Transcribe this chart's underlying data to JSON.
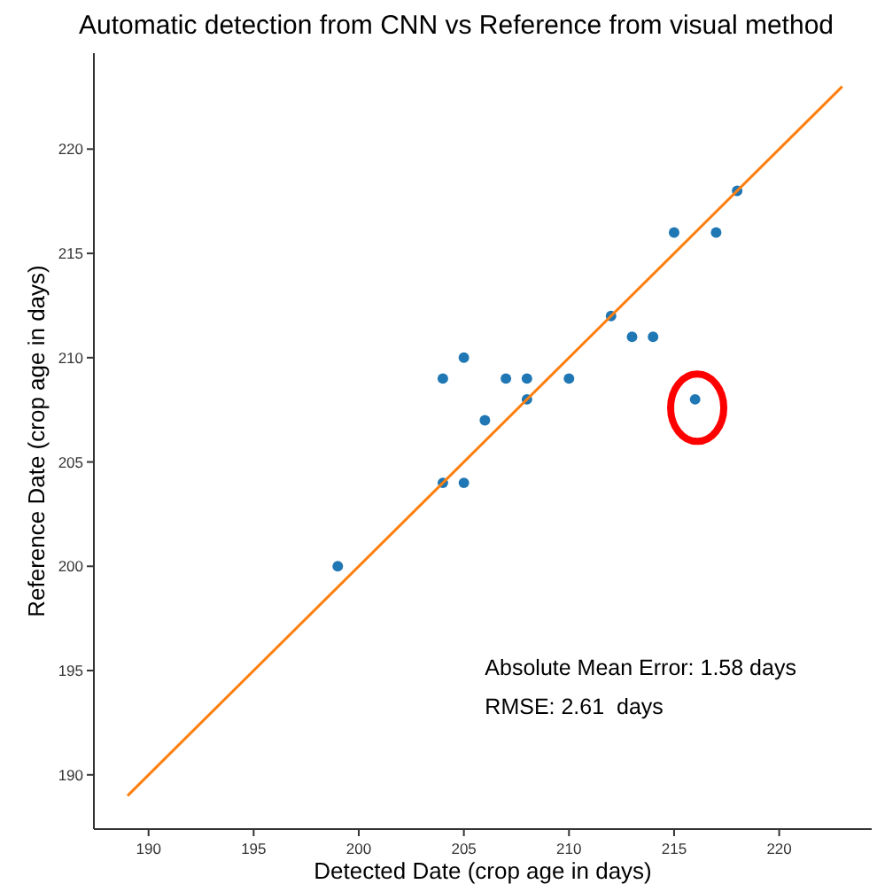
{
  "chart_data": {
    "type": "scatter",
    "title": "Automatic detection from CNN vs Reference from visual method",
    "xlabel": "Detected Date (crop age in days)",
    "ylabel": "Reference Date (crop age in days)",
    "xlim": [
      187.4,
      224.4
    ],
    "ylim": [
      187.4,
      224.6
    ],
    "xticks": [
      190,
      195,
      200,
      205,
      210,
      215,
      220
    ],
    "yticks": [
      190,
      195,
      200,
      205,
      210,
      215,
      220
    ],
    "grid": false,
    "marker": "circle",
    "series": [
      {
        "color": "#1f77b4",
        "x": [
          199,
          204,
          205,
          204,
          205,
          206,
          207,
          208,
          208,
          210,
          212,
          213,
          214,
          215,
          217,
          218,
          216
        ],
        "values": [
          200,
          204,
          204,
          209,
          210,
          207,
          209,
          209,
          208,
          209,
          212,
          211,
          211,
          216,
          216,
          218,
          208
        ]
      },
      {
        "type": "line",
        "color": "#ff7f0e",
        "marker": "none",
        "x": [
          189,
          223
        ],
        "values": [
          189,
          223
        ]
      }
    ],
    "annotations": [
      "Absolute Mean Error: 1.58 days",
      "RMSE: 2.61  days"
    ]
  }
}
